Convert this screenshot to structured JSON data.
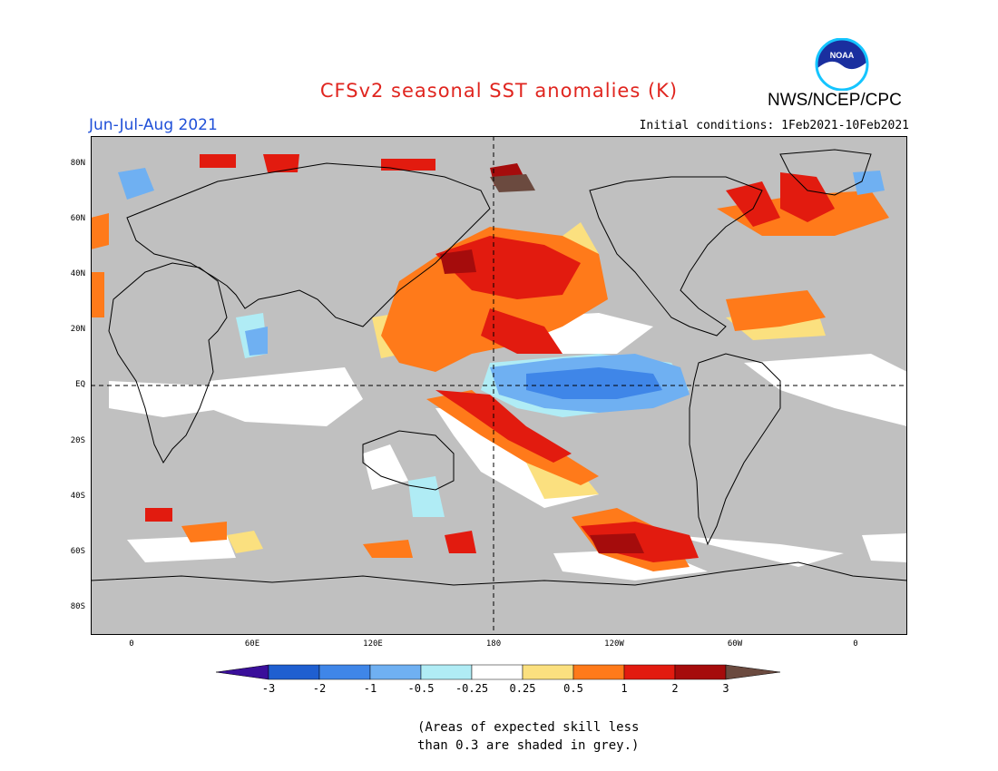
{
  "header": {
    "title": "CFSv2 seasonal SST anomalies (K)",
    "org": "NWS/NCEP/CPC",
    "season": "Jun-Jul-Aug 2021",
    "initial_conditions": "Initial conditions: 1Feb2021-10Feb2021",
    "logo_text": "NOAA"
  },
  "axes": {
    "lat_labels": [
      "80N",
      "60N",
      "40N",
      "20N",
      "EQ",
      "20S",
      "40S",
      "60S",
      "80S"
    ],
    "lon_labels": [
      "0",
      "60E",
      "120E",
      "180",
      "120W",
      "60W",
      "0"
    ]
  },
  "colorbar": {
    "labels": [
      "-3",
      "-2",
      "-1",
      "-0.5",
      "-0.25",
      "0.25",
      "0.5",
      "1",
      "2",
      "3"
    ],
    "colors": [
      "#3a0f9a",
      "#1f5fd0",
      "#3f86e8",
      "#6fb0f2",
      "#b0ecf5",
      "#ffffff",
      "#fbe07f",
      "#ff7a1a",
      "#e21b0f",
      "#a50c0c",
      "#6b4a3f"
    ]
  },
  "note": {
    "line1": "(Areas of expected skill less",
    "line2": "than 0.3 are shaded in grey.)"
  },
  "colors": {
    "land": "#ffffff",
    "low_skill": "#c0c0c0",
    "title": "#e0251f",
    "season": "#2050d8"
  }
}
